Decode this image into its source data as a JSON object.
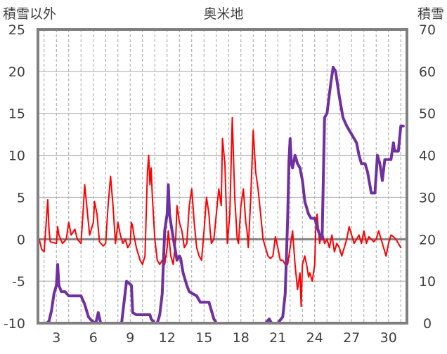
{
  "title": "奥米地",
  "left_axis_label": "積雪以外",
  "right_axis_label": "積雪",
  "colors": {
    "red_series": "#ff0000",
    "purple_series": "#7030a0",
    "grid": "#a6a6a6",
    "frame": "#808080",
    "zero_line": "#808080"
  },
  "chart_data": {
    "type": "line",
    "title": "奥米地",
    "xlim": [
      1.5,
      31.5
    ],
    "x_ticks": [
      3,
      6,
      9,
      12,
      15,
      18,
      21,
      24,
      27,
      30
    ],
    "y_left": {
      "label": "積雪以外",
      "lim": [
        -10,
        25
      ],
      "ticks": [
        -10,
        -5,
        0,
        5,
        10,
        15,
        20,
        25
      ]
    },
    "y_right": {
      "label": "積雪",
      "lim": [
        0,
        70
      ],
      "ticks": [
        0,
        10,
        20,
        30,
        40,
        50,
        60,
        70
      ]
    },
    "grid": {
      "vertical": "dashed daily",
      "horizontal": "solid every 5"
    },
    "series": [
      {
        "axis": "left",
        "color": "#ff0000",
        "points": [
          [
            1.6,
            0
          ],
          [
            1.8,
            -1.2
          ],
          [
            2,
            -1.5
          ],
          [
            2.3,
            4.7
          ],
          [
            2.4,
            1
          ],
          [
            2.5,
            -0.3
          ],
          [
            3,
            -0.5
          ],
          [
            3.1,
            1.5
          ],
          [
            3.2,
            0.5
          ],
          [
            3.5,
            -0.5
          ],
          [
            3.8,
            0
          ],
          [
            4,
            2
          ],
          [
            4.2,
            0.5
          ],
          [
            4.5,
            1.2
          ],
          [
            4.7,
            0
          ],
          [
            5,
            -0.5
          ],
          [
            5.2,
            4
          ],
          [
            5.3,
            6.5
          ],
          [
            5.5,
            3.5
          ],
          [
            5.7,
            0.5
          ],
          [
            6,
            2
          ],
          [
            6.1,
            4.5
          ],
          [
            6.3,
            3
          ],
          [
            6.5,
            -0.3
          ],
          [
            6.8,
            -0.8
          ],
          [
            7,
            -0.5
          ],
          [
            7.2,
            4
          ],
          [
            7.4,
            7.5
          ],
          [
            7.6,
            4
          ],
          [
            7.8,
            -0.5
          ],
          [
            8,
            2
          ],
          [
            8.2,
            0.5
          ],
          [
            8.4,
            -0.5
          ],
          [
            8.6,
            0
          ],
          [
            8.8,
            -1
          ],
          [
            9,
            -0.5
          ],
          [
            9.1,
            2
          ],
          [
            9.2,
            1.5
          ],
          [
            9.3,
            0.5
          ],
          [
            9.5,
            -1
          ],
          [
            9.8,
            -2.5
          ],
          [
            10,
            -3
          ],
          [
            10.2,
            -2
          ],
          [
            10.4,
            8
          ],
          [
            10.5,
            10
          ],
          [
            10.6,
            6.5
          ],
          [
            10.7,
            8.5
          ],
          [
            10.8,
            5
          ],
          [
            11,
            0
          ],
          [
            11.2,
            -2.5
          ],
          [
            11.4,
            -3
          ],
          [
            11.6,
            -2.5
          ],
          [
            11.8,
            -3
          ],
          [
            12,
            -1
          ],
          [
            12.1,
            1
          ],
          [
            12.3,
            -2
          ],
          [
            12.5,
            -3
          ],
          [
            12.7,
            0
          ],
          [
            12.8,
            4
          ],
          [
            13,
            2
          ],
          [
            13.2,
            1
          ],
          [
            13.4,
            -1
          ],
          [
            13.6,
            -0.5
          ],
          [
            13.8,
            4
          ],
          [
            14,
            6
          ],
          [
            14.2,
            2
          ],
          [
            14.4,
            -1
          ],
          [
            14.6,
            -2
          ],
          [
            14.8,
            -2.5
          ],
          [
            15,
            1
          ],
          [
            15.2,
            5
          ],
          [
            15.4,
            3
          ],
          [
            15.5,
            1
          ],
          [
            15.6,
            -0.5
          ],
          [
            15.8,
            0
          ],
          [
            16,
            3
          ],
          [
            16.2,
            6
          ],
          [
            16.4,
            4
          ],
          [
            16.5,
            12
          ],
          [
            16.7,
            9
          ],
          [
            16.9,
            -0.5
          ],
          [
            17.1,
            3
          ],
          [
            17.3,
            14.5
          ],
          [
            17.5,
            5
          ],
          [
            17.7,
            0
          ],
          [
            17.8,
            -0.5
          ],
          [
            18,
            4
          ],
          [
            18.2,
            6
          ],
          [
            18.4,
            2
          ],
          [
            18.5,
            1
          ],
          [
            18.6,
            -1
          ],
          [
            18.8,
            5
          ],
          [
            19,
            13
          ],
          [
            19.2,
            8
          ],
          [
            19.4,
            6
          ],
          [
            19.6,
            3
          ],
          [
            19.8,
            0
          ],
          [
            20,
            -1
          ],
          [
            20.2,
            -2
          ],
          [
            20.4,
            -2.3
          ],
          [
            20.6,
            -2
          ],
          [
            20.8,
            0.3
          ],
          [
            21,
            -1
          ],
          [
            21.2,
            -2.5
          ],
          [
            21.4,
            -2.5
          ],
          [
            21.6,
            -3
          ],
          [
            21.8,
            -3
          ],
          [
            22,
            -1
          ],
          [
            22.2,
            1
          ],
          [
            22.4,
            -3
          ],
          [
            22.6,
            -6
          ],
          [
            22.8,
            -4
          ],
          [
            22.9,
            -8
          ],
          [
            23,
            -3
          ],
          [
            23.2,
            -2
          ],
          [
            23.4,
            -3.5
          ],
          [
            23.5,
            -4.5
          ],
          [
            23.6,
            -4
          ],
          [
            23.8,
            -5
          ],
          [
            24,
            -3
          ],
          [
            24.1,
            2
          ],
          [
            24.2,
            3
          ],
          [
            24.4,
            -0.5
          ],
          [
            24.6,
            1
          ],
          [
            24.8,
            -0.5
          ],
          [
            25,
            0
          ],
          [
            25.2,
            -1
          ],
          [
            25.4,
            0.5
          ],
          [
            25.6,
            -1.5
          ],
          [
            25.8,
            -0.5
          ],
          [
            26,
            -1
          ],
          [
            26.2,
            -2
          ],
          [
            26.4,
            -1
          ],
          [
            26.6,
            0
          ],
          [
            26.8,
            1.5
          ],
          [
            27,
            0.5
          ],
          [
            27.2,
            -0.5
          ],
          [
            27.4,
            0
          ],
          [
            27.6,
            0.5
          ],
          [
            27.8,
            -0.5
          ],
          [
            28,
            1
          ],
          [
            28.2,
            -0.5
          ],
          [
            28.4,
            0.3
          ],
          [
            28.6,
            0
          ],
          [
            28.8,
            -0.3
          ],
          [
            29,
            0
          ],
          [
            29.2,
            1
          ],
          [
            29.4,
            0
          ],
          [
            29.6,
            -1
          ],
          [
            29.8,
            -2
          ],
          [
            30,
            -0.5
          ],
          [
            30.2,
            0.5
          ],
          [
            30.4,
            0.3
          ],
          [
            30.6,
            0
          ],
          [
            30.8,
            -0.5
          ],
          [
            31,
            -1
          ]
        ]
      },
      {
        "axis": "right",
        "color": "#7030a0",
        "points": [
          [
            1.6,
            0
          ],
          [
            2.2,
            0
          ],
          [
            2.4,
            0.5
          ],
          [
            2.6,
            3
          ],
          [
            2.8,
            7
          ],
          [
            3.0,
            9
          ],
          [
            3.1,
            14
          ],
          [
            3.2,
            9
          ],
          [
            3.4,
            7.5
          ],
          [
            3.7,
            7.5
          ],
          [
            4.0,
            6.5
          ],
          [
            4.2,
            6.5
          ],
          [
            4.5,
            6.5
          ],
          [
            5.0,
            6.5
          ],
          [
            5.3,
            4.5
          ],
          [
            5.6,
            1.5
          ],
          [
            5.9,
            0.5
          ],
          [
            6.2,
            0
          ],
          [
            6.4,
            2.5
          ],
          [
            6.6,
            0
          ],
          [
            7.0,
            0
          ],
          [
            8.0,
            0
          ],
          [
            8.3,
            0
          ],
          [
            8.5,
            5
          ],
          [
            8.7,
            10
          ],
          [
            8.9,
            9.5
          ],
          [
            9.1,
            9
          ],
          [
            9.2,
            2.5
          ],
          [
            9.5,
            2
          ],
          [
            10,
            2
          ],
          [
            10.6,
            2
          ],
          [
            10.7,
            1
          ],
          [
            11,
            0
          ],
          [
            11.2,
            0
          ],
          [
            11.4,
            2
          ],
          [
            11.6,
            7
          ],
          [
            11.8,
            22
          ],
          [
            12.0,
            26
          ],
          [
            12.1,
            33
          ],
          [
            12.2,
            26
          ],
          [
            12.4,
            22
          ],
          [
            12.8,
            15
          ],
          [
            13.0,
            16
          ],
          [
            13.1,
            15.5
          ],
          [
            13.3,
            12
          ],
          [
            13.6,
            9
          ],
          [
            13.8,
            7.5
          ],
          [
            14.1,
            7
          ],
          [
            14.4,
            6.5
          ],
          [
            14.7,
            5
          ],
          [
            15.0,
            5
          ],
          [
            15.4,
            5
          ],
          [
            15.6,
            3
          ],
          [
            15.8,
            1
          ],
          [
            16,
            0
          ],
          [
            17,
            0
          ],
          [
            18,
            0
          ],
          [
            19,
            0
          ],
          [
            20,
            0
          ],
          [
            20.3,
            1
          ],
          [
            20.5,
            0
          ],
          [
            21,
            0
          ],
          [
            21.4,
            1.5
          ],
          [
            21.6,
            7
          ],
          [
            21.8,
            25
          ],
          [
            21.9,
            38
          ],
          [
            22.0,
            44
          ],
          [
            22.1,
            38
          ],
          [
            22.2,
            37
          ],
          [
            22.4,
            40
          ],
          [
            22.6,
            38
          ],
          [
            22.8,
            37
          ],
          [
            23.0,
            34
          ],
          [
            23.2,
            29
          ],
          [
            23.5,
            26
          ],
          [
            23.7,
            25
          ],
          [
            24.0,
            25
          ],
          [
            24.2,
            23
          ],
          [
            24.4,
            21
          ],
          [
            24.6,
            20
          ],
          [
            24.8,
            49
          ],
          [
            25.0,
            50
          ],
          [
            25.3,
            57
          ],
          [
            25.5,
            61
          ],
          [
            25.7,
            60
          ],
          [
            26.0,
            54
          ],
          [
            26.3,
            49
          ],
          [
            26.6,
            47
          ],
          [
            27.0,
            45
          ],
          [
            27.4,
            43
          ],
          [
            27.6,
            40
          ],
          [
            27.8,
            38
          ],
          [
            28.1,
            38
          ],
          [
            28.3,
            36
          ],
          [
            28.6,
            31
          ],
          [
            28.9,
            31
          ],
          [
            29.1,
            40
          ],
          [
            29.3,
            38
          ],
          [
            29.5,
            34
          ],
          [
            29.7,
            39
          ],
          [
            30.0,
            39
          ],
          [
            30.2,
            39
          ],
          [
            30.4,
            43
          ],
          [
            30.5,
            41
          ],
          [
            30.8,
            41
          ],
          [
            31.0,
            47
          ],
          [
            31.2,
            47
          ]
        ]
      }
    ]
  }
}
